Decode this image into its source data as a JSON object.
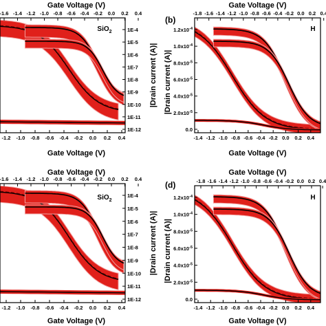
{
  "colors": {
    "band": "#e0201b",
    "band_edge": "#f2a3a3",
    "curve": "#000000",
    "mean_dash": "#5a0000"
  },
  "chart_data": [
    {
      "id": "a",
      "type": "line",
      "panel_label": "",
      "material_label": "SiO2",
      "top_xlabel": "Gate Voltage (V)",
      "bottom_xlabel": "Gate Voltage (V)",
      "right_ylabel": "|Drain current (A)|",
      "yscale": "log",
      "top_ticks": [
        "-1.6",
        "-1.4",
        "-1.2",
        "-1.0",
        "-0.8",
        "-0.6",
        "-0.4",
        "-0.2",
        "0.0",
        "0.2",
        "0.4"
      ],
      "bottom_ticks": [
        "-1.2",
        "-1.0",
        "-0.8",
        "-0.6",
        "-0.4",
        "-0.2",
        "0.0",
        "0.2",
        "0.4"
      ],
      "y_ticks": [
        "1E-4",
        "1E-5",
        "1E-6",
        "1E-7",
        "1E-8",
        "1E-9",
        "1E-10",
        "1E-11",
        "1E-12"
      ],
      "ylim": [
        1e-12,
        0.0003
      ]
    },
    {
      "id": "b",
      "type": "line",
      "panel_label": "(b)",
      "material_label": "H",
      "top_xlabel": "Gate Voltage (V)",
      "bottom_xlabel": "Gate Voltage (V)",
      "right_ylabel": "|Drain current (A)|",
      "yscale": "linear",
      "top_ticks": [
        "-1.8",
        "-1.6",
        "-1.4",
        "-1.2",
        "-1.0",
        "-0.8",
        "-0.6",
        "-0.4",
        "-0.2",
        "0.0",
        "0.2",
        "0.4"
      ],
      "bottom_ticks": [
        "-1.4",
        "-1.2",
        "-1.0",
        "-0.8",
        "-0.6",
        "-0.4",
        "-0.2",
        "0.0",
        "0.2",
        "0.4"
      ],
      "y_ticks": [
        "1.2x10-4",
        "1.0x10-4",
        "8.0x10-5",
        "6.0x10-5",
        "4.0x10-5",
        "2.0x10-5",
        "0.0"
      ],
      "ylim": [
        0,
        0.00013
      ]
    },
    {
      "id": "c",
      "type": "line",
      "panel_label": "",
      "material_label": "SiO2",
      "top_xlabel": "Gate Voltage (V)",
      "bottom_xlabel": "Gate Voltage (V)",
      "right_ylabel": "|Drain current (A)|",
      "yscale": "log",
      "top_ticks": [
        "-1.6",
        "-1.4",
        "-1.2",
        "-1.0",
        "-0.8",
        "-0.6",
        "-0.4",
        "-0.2",
        "0.0",
        "0.2",
        "0.4"
      ],
      "bottom_ticks": [
        "-1.2",
        "-1.0",
        "-0.8",
        "-0.6",
        "-0.4",
        "-0.2",
        "0.0",
        "0.2",
        "0.4"
      ],
      "y_ticks": [
        "1E-4",
        "1E-5",
        "1E-6",
        "1E-7",
        "1E-8",
        "1E-9",
        "1E-10",
        "1E-11",
        "1E-12"
      ],
      "ylim": [
        1e-12,
        0.0003
      ]
    },
    {
      "id": "d",
      "type": "line",
      "panel_label": "(d)",
      "material_label": "H",
      "top_xlabel": "Gate Voltage (V)",
      "bottom_xlabel": "Gate Voltage (V)",
      "right_ylabel": "|Drain current (A)|",
      "yscale": "linear",
      "top_ticks": [
        "-1.8",
        "-1.6",
        "-1.4",
        "-1.2",
        "-1.0",
        "-0.8",
        "-0.6",
        "-0.4",
        "-0.2",
        "0.0",
        "0.2",
        "0.4"
      ],
      "bottom_ticks": [
        "-1.4",
        "-1.2",
        "-1.0",
        "-0.8",
        "-0.6",
        "-0.4",
        "-0.2",
        "0.0",
        "0.2",
        "0.4"
      ],
      "y_ticks": [
        "1.2x10-4",
        "1.0x10-4",
        "8.0x10-5",
        "6.0x10-5",
        "4.0x10-5",
        "2.0x10-5",
        "0.0"
      ],
      "ylim": [
        0,
        0.00013
      ]
    }
  ]
}
